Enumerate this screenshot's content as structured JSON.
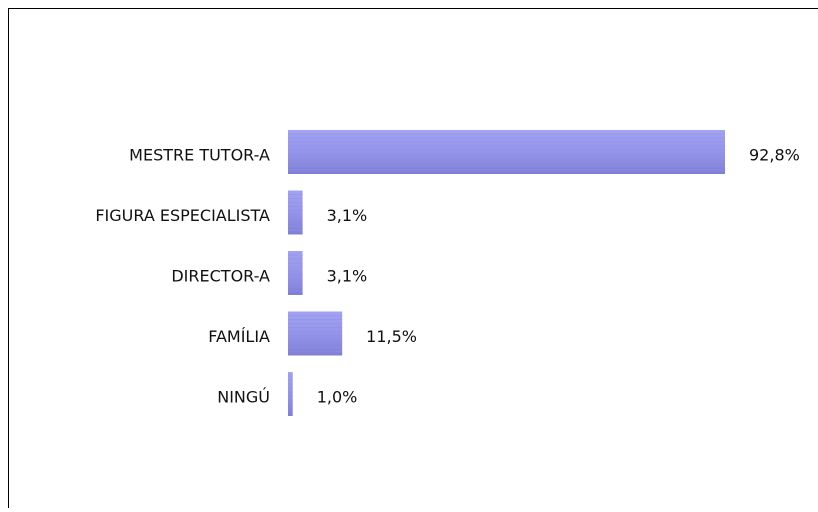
{
  "chart_data": {
    "type": "barh",
    "categories": [
      "MESTRE TUTOR-A",
      "FIGURA ESPECIALISTA",
      "DIRECTOR-A",
      "FAMÍLIA",
      "NINGÚ"
    ],
    "values": [
      92.8,
      3.1,
      3.1,
      11.5,
      1.0
    ],
    "value_labels": [
      "92,8%",
      "3,1%",
      "3,1%",
      "11,5%",
      "1,0%"
    ],
    "color": "#8f8fe8"
  }
}
